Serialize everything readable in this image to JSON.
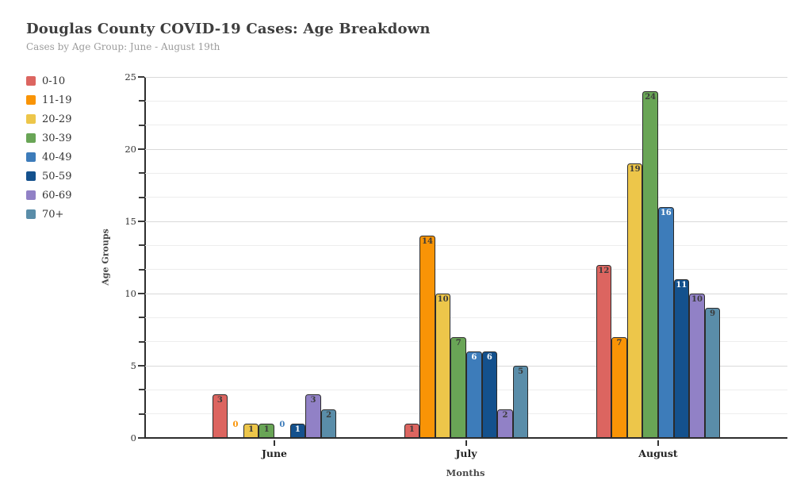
{
  "header": {
    "title": "Douglas County COVID-19 Cases: Age Breakdown",
    "subtitle": "Cases by Age Group: June - August 19th"
  },
  "chart_data": {
    "type": "bar",
    "title": "Douglas County COVID-19 Cases: Age Breakdown",
    "subtitle": "Cases by Age Group: June - August 19th",
    "categories": [
      "June",
      "July",
      "August"
    ],
    "series": [
      {
        "name": "0-10",
        "color": "#dc6560",
        "values": [
          3,
          1,
          12
        ]
      },
      {
        "name": "11-19",
        "color": "#f99406",
        "values": [
          0,
          14,
          7
        ]
      },
      {
        "name": "20-29",
        "color": "#edc64a",
        "values": [
          1,
          10,
          19
        ]
      },
      {
        "name": "30-39",
        "color": "#69a556",
        "values": [
          1,
          7,
          24
        ]
      },
      {
        "name": "40-49",
        "color": "#3d7cba",
        "values": [
          0,
          6,
          16
        ],
        "value_label_color": "#ffffff"
      },
      {
        "name": "50-59",
        "color": "#14518d",
        "values": [
          1,
          6,
          11
        ],
        "value_label_color": "#ffffff"
      },
      {
        "name": "60-69",
        "color": "#9181c6",
        "values": [
          3,
          2,
          10
        ]
      },
      {
        "name": "70+",
        "color": "#5a8da9",
        "values": [
          2,
          5,
          9
        ]
      }
    ],
    "xlabel": "Months",
    "ylabel": "Age Groups",
    "ylim": [
      0,
      25
    ],
    "yticks": [
      0,
      5,
      10,
      15,
      20,
      25
    ],
    "grid": {
      "horizontal": true,
      "major_step": 5,
      "minor_divisions_per_major": 3
    },
    "legend_position": "left",
    "value_label_style": "inside-top of bar; white on 40-49 and 50-59 bars, dark otherwise",
    "zero_value_style": "series-colored 0 shown just above baseline, no bar",
    "colors": {
      "bar_outline": "#2b2b2b",
      "value_label_dark": "#3b3b3b",
      "axis": "#2e2e2e",
      "grid_major": "#d9d9d9",
      "grid_minor": "#ededed"
    }
  }
}
